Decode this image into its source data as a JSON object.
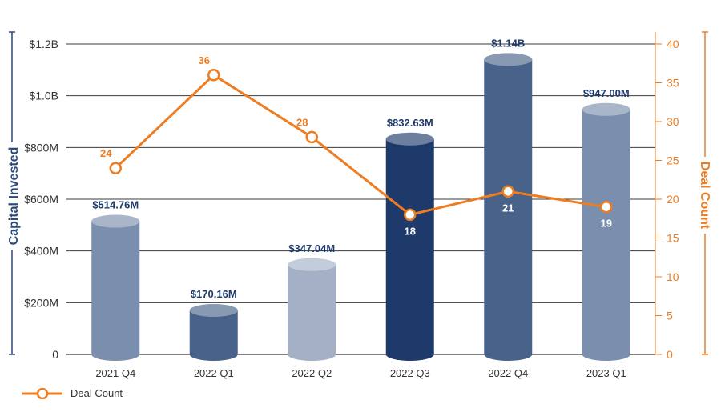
{
  "colors": {
    "line": "#ee7d22",
    "label_dark": "#1e3a6a",
    "axis_left": "#2b4a7a",
    "grid": "#3a3a3a"
  },
  "chart_data": {
    "type": "bar",
    "categories": [
      "2021 Q4",
      "2022 Q1",
      "2022 Q2",
      "2022 Q3",
      "2022 Q4",
      "2023 Q1"
    ],
    "ylabel": "Capital Invested",
    "y2label": "Deal Count",
    "ylim": [
      0,
      1200
    ],
    "y2lim": [
      0,
      40
    ],
    "yticks": [
      "0",
      "$200M",
      "$400M",
      "$600M",
      "$800M",
      "$1.0B",
      "$1.2B"
    ],
    "y2ticks": [
      "0",
      "5",
      "10",
      "15",
      "20",
      "25",
      "30",
      "35",
      "40"
    ],
    "series": [
      {
        "name": "Capital Invested",
        "type": "bar",
        "axis": "left",
        "values": [
          514.76,
          170.16,
          347.04,
          832.63,
          1140,
          947.0
        ],
        "labels": [
          "$514.76M",
          "$170.16M",
          "$347.04M",
          "$832.63M",
          "$1.14B",
          "$947.00M"
        ],
        "colors": [
          "#7a8fae",
          "#486289",
          "#a3b0c6",
          "#1e3a6a",
          "#486289",
          "#7a8fae"
        ]
      },
      {
        "name": "Deal Count",
        "type": "line",
        "axis": "right",
        "values": [
          24,
          36,
          28,
          18,
          21,
          19
        ],
        "labels": [
          "24",
          "36",
          "28",
          "18",
          "21",
          "19"
        ]
      }
    ],
    "grid": true,
    "legend": "bottom-left"
  },
  "legend": {
    "label": "Deal Count"
  }
}
